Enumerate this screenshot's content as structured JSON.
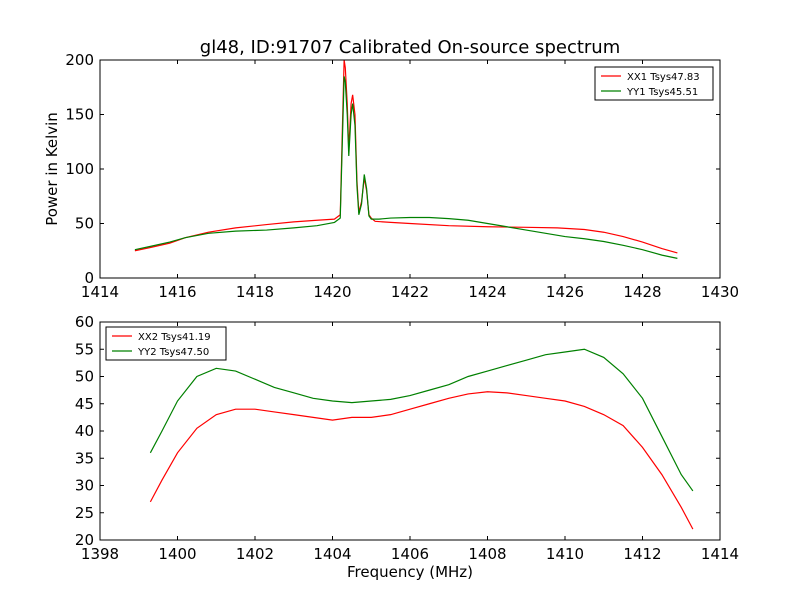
{
  "title": "gl48, ID:91707 Calibrated On-source spectrum",
  "chart_data": [
    {
      "type": "line",
      "title": "gl48, ID:91707 Calibrated On-source spectrum",
      "xlabel": "",
      "ylabel": "Power in Kelvin",
      "xlim": [
        1414,
        1430
      ],
      "ylim": [
        0,
        200
      ],
      "xticks": [
        1414,
        1416,
        1418,
        1420,
        1422,
        1424,
        1426,
        1428,
        1430
      ],
      "yticks": [
        0,
        50,
        100,
        150,
        200
      ],
      "grid": false,
      "legend_position": "top-right",
      "series": [
        {
          "name": "XX1 Tsys47.83",
          "color": "#ff0000",
          "points": [
            [
              1414.9,
              25
            ],
            [
              1415.3,
              28
            ],
            [
              1415.8,
              32
            ],
            [
              1416.2,
              37
            ],
            [
              1416.8,
              42
            ],
            [
              1417.5,
              46
            ],
            [
              1418.3,
              49
            ],
            [
              1419.0,
              51.5
            ],
            [
              1419.6,
              53
            ],
            [
              1420.05,
              54
            ],
            [
              1420.2,
              58
            ],
            [
              1420.25,
              130
            ],
            [
              1420.3,
              200
            ],
            [
              1420.33,
              193
            ],
            [
              1420.38,
              160
            ],
            [
              1420.42,
              118
            ],
            [
              1420.48,
              160
            ],
            [
              1420.52,
              168
            ],
            [
              1420.58,
              150
            ],
            [
              1420.63,
              90
            ],
            [
              1420.68,
              60
            ],
            [
              1420.75,
              70
            ],
            [
              1420.82,
              92
            ],
            [
              1420.88,
              80
            ],
            [
              1420.94,
              58
            ],
            [
              1421.0,
              55
            ],
            [
              1421.1,
              52
            ],
            [
              1421.5,
              51
            ],
            [
              1422.0,
              50
            ],
            [
              1423.0,
              48
            ],
            [
              1424.0,
              47
            ],
            [
              1425.0,
              46.5
            ],
            [
              1425.8,
              46
            ],
            [
              1426.5,
              44.5
            ],
            [
              1427.0,
              42
            ],
            [
              1427.5,
              38
            ],
            [
              1428.0,
              33
            ],
            [
              1428.5,
              27
            ],
            [
              1428.9,
              23
            ]
          ]
        },
        {
          "name": "YY1 Tsys45.51",
          "color": "#008000",
          "points": [
            [
              1414.9,
              26
            ],
            [
              1415.3,
              29
            ],
            [
              1415.8,
              33
            ],
            [
              1416.2,
              37
            ],
            [
              1416.8,
              41
            ],
            [
              1417.5,
              43
            ],
            [
              1418.3,
              44
            ],
            [
              1419.0,
              46
            ],
            [
              1419.6,
              48
            ],
            [
              1420.05,
              51
            ],
            [
              1420.2,
              55
            ],
            [
              1420.25,
              120
            ],
            [
              1420.3,
              185
            ],
            [
              1420.33,
              180
            ],
            [
              1420.38,
              150
            ],
            [
              1420.42,
              112
            ],
            [
              1420.48,
              150
            ],
            [
              1420.52,
              160
            ],
            [
              1420.58,
              140
            ],
            [
              1420.63,
              85
            ],
            [
              1420.68,
              58
            ],
            [
              1420.75,
              68
            ],
            [
              1420.82,
              95
            ],
            [
              1420.88,
              82
            ],
            [
              1420.94,
              57
            ],
            [
              1421.0,
              54
            ],
            [
              1421.2,
              54
            ],
            [
              1421.5,
              55
            ],
            [
              1422.0,
              55.5
            ],
            [
              1422.5,
              55.5
            ],
            [
              1423.0,
              54.5
            ],
            [
              1423.5,
              53
            ],
            [
              1424.0,
              50
            ],
            [
              1424.5,
              47
            ],
            [
              1425.0,
              44
            ],
            [
              1425.5,
              41
            ],
            [
              1426.0,
              38
            ],
            [
              1426.5,
              36
            ],
            [
              1427.0,
              33.5
            ],
            [
              1427.5,
              30
            ],
            [
              1428.0,
              26
            ],
            [
              1428.5,
              21
            ],
            [
              1428.9,
              18
            ]
          ]
        }
      ]
    },
    {
      "type": "line",
      "title": "",
      "xlabel": "Frequency (MHz)",
      "ylabel": "",
      "xlim": [
        1398,
        1414
      ],
      "ylim": [
        20,
        60
      ],
      "xticks": [
        1398,
        1400,
        1402,
        1404,
        1406,
        1408,
        1410,
        1412,
        1414
      ],
      "yticks": [
        20,
        25,
        30,
        35,
        40,
        45,
        50,
        55,
        60
      ],
      "grid": false,
      "legend_position": "top-left",
      "series": [
        {
          "name": "XX2 Tsys41.19",
          "color": "#ff0000",
          "points": [
            [
              1399.3,
              27
            ],
            [
              1399.6,
              31
            ],
            [
              1400.0,
              36
            ],
            [
              1400.5,
              40.5
            ],
            [
              1401.0,
              43
            ],
            [
              1401.5,
              44
            ],
            [
              1402.0,
              44
            ],
            [
              1402.5,
              43.5
            ],
            [
              1403.0,
              43
            ],
            [
              1403.5,
              42.5
            ],
            [
              1404.0,
              42
            ],
            [
              1404.5,
              42.5
            ],
            [
              1405.0,
              42.5
            ],
            [
              1405.5,
              43
            ],
            [
              1406.0,
              44
            ],
            [
              1406.5,
              45
            ],
            [
              1407.0,
              46
            ],
            [
              1407.5,
              46.8
            ],
            [
              1408.0,
              47.2
            ],
            [
              1408.5,
              47
            ],
            [
              1409.0,
              46.5
            ],
            [
              1409.5,
              46
            ],
            [
              1410.0,
              45.5
            ],
            [
              1410.5,
              44.5
            ],
            [
              1411.0,
              43
            ],
            [
              1411.5,
              41
            ],
            [
              1412.0,
              37
            ],
            [
              1412.5,
              32
            ],
            [
              1413.0,
              26
            ],
            [
              1413.3,
              22
            ]
          ]
        },
        {
          "name": "YY2 Tsys47.50",
          "color": "#008000",
          "points": [
            [
              1399.3,
              36
            ],
            [
              1399.6,
              40
            ],
            [
              1400.0,
              45.5
            ],
            [
              1400.5,
              50
            ],
            [
              1401.0,
              51.5
            ],
            [
              1401.5,
              51
            ],
            [
              1402.0,
              49.5
            ],
            [
              1402.5,
              48
            ],
            [
              1403.0,
              47
            ],
            [
              1403.5,
              46
            ],
            [
              1404.0,
              45.5
            ],
            [
              1404.5,
              45.2
            ],
            [
              1405.0,
              45.5
            ],
            [
              1405.5,
              45.8
            ],
            [
              1406.0,
              46.5
            ],
            [
              1406.5,
              47.5
            ],
            [
              1407.0,
              48.5
            ],
            [
              1407.5,
              50
            ],
            [
              1408.0,
              51
            ],
            [
              1408.5,
              52
            ],
            [
              1409.0,
              53
            ],
            [
              1409.5,
              54
            ],
            [
              1410.0,
              54.5
            ],
            [
              1410.5,
              55
            ],
            [
              1411.0,
              53.5
            ],
            [
              1411.5,
              50.5
            ],
            [
              1412.0,
              46
            ],
            [
              1412.5,
              39
            ],
            [
              1413.0,
              32
            ],
            [
              1413.3,
              29
            ]
          ]
        }
      ]
    }
  ]
}
